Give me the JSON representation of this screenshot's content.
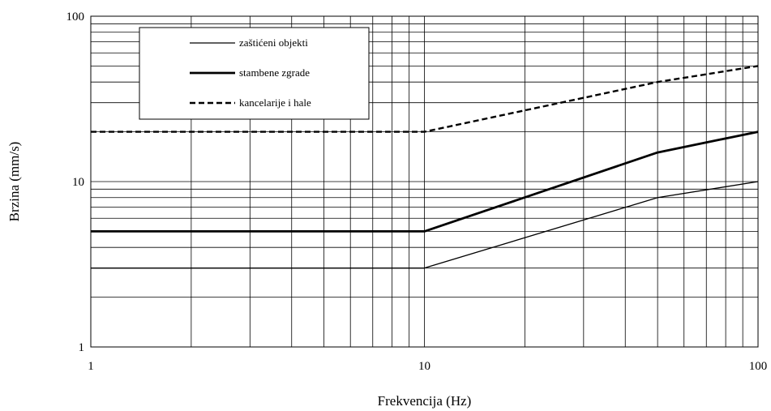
{
  "chart_data": {
    "type": "line",
    "x_scale": "log",
    "y_scale": "log",
    "xlim": [
      1,
      100
    ],
    "ylim": [
      1,
      100
    ],
    "grid": true,
    "legend_position": "top-left",
    "xlabel": "Frekvencija (Hz)",
    "ylabel": "Brzina (mm/s)",
    "x_tick_labels": [
      "1",
      "10",
      "100"
    ],
    "y_tick_labels": [
      "1",
      "10",
      "100"
    ],
    "series": [
      {
        "name": "zaštićeni objekti",
        "style": "thin-solid",
        "color": "#000000",
        "x": [
          1,
          10,
          50,
          100
        ],
        "y": [
          3,
          3,
          8,
          10
        ]
      },
      {
        "name": "stambene zgrade",
        "style": "thick-solid",
        "color": "#000000",
        "x": [
          1,
          10,
          50,
          100
        ],
        "y": [
          5,
          5,
          15,
          20
        ]
      },
      {
        "name": "kancelarije i hale",
        "style": "dashed",
        "color": "#000000",
        "x": [
          1,
          10,
          50,
          100
        ],
        "y": [
          20,
          20,
          40,
          50
        ]
      }
    ]
  }
}
